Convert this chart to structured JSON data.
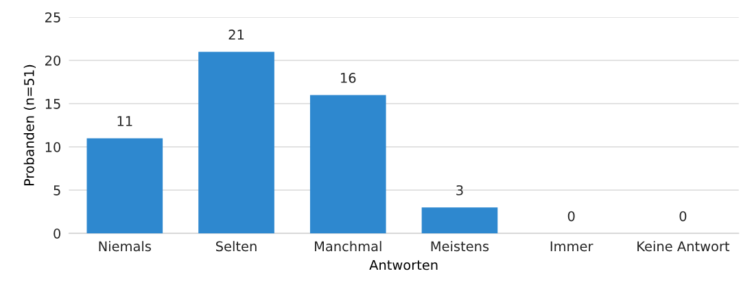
{
  "chart_data": {
    "type": "bar",
    "categories": [
      "Niemals",
      "Selten",
      "Manchmal",
      "Meistens",
      "Immer",
      "Keine Antwort"
    ],
    "values": [
      11,
      21,
      16,
      3,
      0,
      0
    ],
    "color": "#2e88cf",
    "xlabel": "Antworten",
    "ylabel": "Probanden (n=51)",
    "ylim": [
      0,
      25
    ],
    "yticks": [
      0,
      5,
      10,
      15,
      20,
      25
    ],
    "grid": "y",
    "data_labels": true,
    "legend": false
  }
}
